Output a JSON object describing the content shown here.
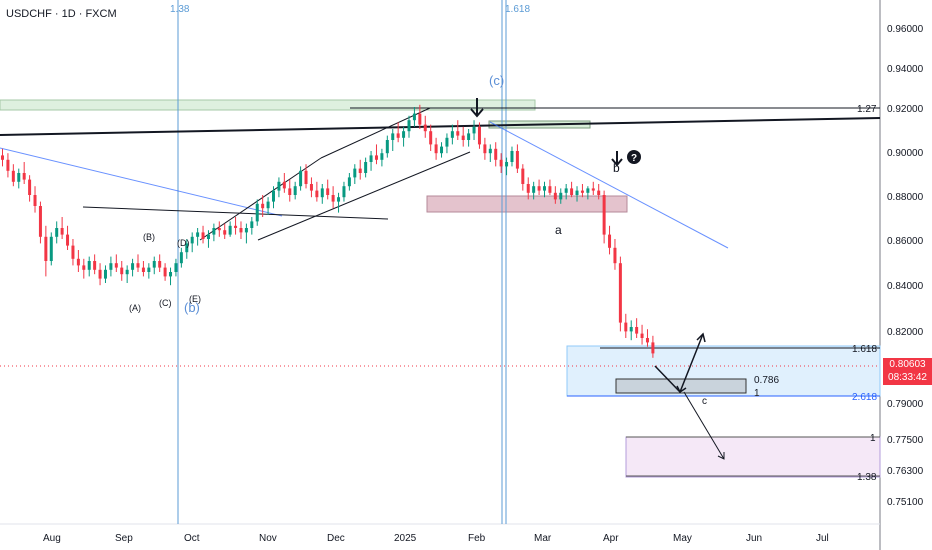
{
  "header": {
    "symbol_line": "USDCHF · 1D · FXCM"
  },
  "price_tag": {
    "price": "0.80603",
    "countdown": "08:33:42"
  },
  "colors": {
    "up": "#089981",
    "down": "#f23645",
    "blue": "#2962ff",
    "fib": "#5b9bd5"
  },
  "chart_data": {
    "type": "candlestick",
    "title": "USDCHF · 1D · FXCM",
    "x_labels": [
      "Aug",
      "Sep",
      "Oct",
      "Nov",
      "Dec",
      "2025",
      "Feb",
      "Mar",
      "Apr",
      "May",
      "Jun",
      "Jul"
    ],
    "y_ticks": [
      0.96,
      0.94,
      0.92,
      0.9,
      0.88,
      0.86,
      0.84,
      0.82,
      0.79,
      0.775,
      0.763,
      0.751
    ],
    "y_tick_labels": [
      "0.96000",
      "0.94000",
      "0.92000",
      "0.90000",
      "0.88000",
      "0.86000",
      "0.84000",
      "0.82000",
      "0.79000",
      "0.77500",
      "0.76300",
      "0.75100"
    ],
    "last_price": 0.80603,
    "series": [
      {
        "values": [
          [
            0.898,
            0.901,
            0.893,
            0.896
          ],
          [
            0.896,
            0.899,
            0.888,
            0.891
          ],
          [
            0.891,
            0.894,
            0.884,
            0.886
          ],
          [
            0.886,
            0.892,
            0.883,
            0.89
          ],
          [
            0.89,
            0.895,
            0.885,
            0.887
          ],
          [
            0.887,
            0.889,
            0.877,
            0.88
          ],
          [
            0.88,
            0.884,
            0.872,
            0.875
          ],
          [
            0.875,
            0.877,
            0.858,
            0.861
          ],
          [
            0.861,
            0.866,
            0.843,
            0.85
          ],
          [
            0.85,
            0.863,
            0.848,
            0.861
          ],
          [
            0.861,
            0.868,
            0.858,
            0.865
          ],
          [
            0.865,
            0.87,
            0.86,
            0.862
          ],
          [
            0.862,
            0.866,
            0.855,
            0.857
          ],
          [
            0.857,
            0.86,
            0.848,
            0.851
          ],
          [
            0.851,
            0.855,
            0.845,
            0.848
          ],
          [
            0.848,
            0.851,
            0.842,
            0.846
          ],
          [
            0.846,
            0.852,
            0.843,
            0.85
          ],
          [
            0.85,
            0.853,
            0.844,
            0.846
          ],
          [
            0.846,
            0.849,
            0.839,
            0.842
          ],
          [
            0.842,
            0.848,
            0.84,
            0.846
          ],
          [
            0.846,
            0.852,
            0.843,
            0.849
          ],
          [
            0.849,
            0.853,
            0.845,
            0.847
          ],
          [
            0.847,
            0.85,
            0.841,
            0.844
          ],
          [
            0.844,
            0.848,
            0.84,
            0.846
          ],
          [
            0.846,
            0.851,
            0.843,
            0.849
          ],
          [
            0.849,
            0.853,
            0.845,
            0.847
          ],
          [
            0.847,
            0.85,
            0.843,
            0.845
          ],
          [
            0.845,
            0.849,
            0.842,
            0.847
          ],
          [
            0.847,
            0.852,
            0.844,
            0.85
          ],
          [
            0.85,
            0.853,
            0.845,
            0.847
          ],
          [
            0.847,
            0.849,
            0.841,
            0.843
          ],
          [
            0.843,
            0.847,
            0.839,
            0.845
          ],
          [
            0.845,
            0.851,
            0.843,
            0.849
          ],
          [
            0.849,
            0.856,
            0.847,
            0.854
          ],
          [
            0.854,
            0.86,
            0.851,
            0.858
          ],
          [
            0.858,
            0.863,
            0.854,
            0.861
          ],
          [
            0.861,
            0.865,
            0.857,
            0.863
          ],
          [
            0.863,
            0.866,
            0.858,
            0.86
          ],
          [
            0.86,
            0.864,
            0.856,
            0.862
          ],
          [
            0.862,
            0.867,
            0.859,
            0.865
          ],
          [
            0.865,
            0.868,
            0.861,
            0.864
          ],
          [
            0.864,
            0.867,
            0.86,
            0.862
          ],
          [
            0.862,
            0.868,
            0.861,
            0.866
          ],
          [
            0.866,
            0.87,
            0.862,
            0.865
          ],
          [
            0.865,
            0.868,
            0.86,
            0.863
          ],
          [
            0.863,
            0.867,
            0.858,
            0.865
          ],
          [
            0.865,
            0.87,
            0.862,
            0.868
          ],
          [
            0.868,
            0.878,
            0.866,
            0.876
          ],
          [
            0.876,
            0.88,
            0.87,
            0.874
          ],
          [
            0.874,
            0.879,
            0.871,
            0.877
          ],
          [
            0.877,
            0.884,
            0.874,
            0.882
          ],
          [
            0.882,
            0.888,
            0.879,
            0.886
          ],
          [
            0.886,
            0.89,
            0.881,
            0.883
          ],
          [
            0.883,
            0.887,
            0.877,
            0.88
          ],
          [
            0.88,
            0.886,
            0.878,
            0.884
          ],
          [
            0.884,
            0.893,
            0.882,
            0.891
          ],
          [
            0.891,
            0.894,
            0.883,
            0.885
          ],
          [
            0.885,
            0.888,
            0.879,
            0.882
          ],
          [
            0.882,
            0.886,
            0.877,
            0.879
          ],
          [
            0.879,
            0.885,
            0.876,
            0.883
          ],
          [
            0.883,
            0.887,
            0.878,
            0.88
          ],
          [
            0.88,
            0.884,
            0.874,
            0.877
          ],
          [
            0.877,
            0.881,
            0.872,
            0.879
          ],
          [
            0.879,
            0.886,
            0.877,
            0.884
          ],
          [
            0.884,
            0.89,
            0.882,
            0.888
          ],
          [
            0.888,
            0.894,
            0.885,
            0.892
          ],
          [
            0.892,
            0.896,
            0.887,
            0.89
          ],
          [
            0.89,
            0.897,
            0.888,
            0.895
          ],
          [
            0.895,
            0.9,
            0.891,
            0.898
          ],
          [
            0.898,
            0.903,
            0.894,
            0.896
          ],
          [
            0.896,
            0.901,
            0.893,
            0.899
          ],
          [
            0.899,
            0.907,
            0.897,
            0.905
          ],
          [
            0.905,
            0.91,
            0.9,
            0.908
          ],
          [
            0.908,
            0.913,
            0.904,
            0.906
          ],
          [
            0.906,
            0.911,
            0.902,
            0.909
          ],
          [
            0.909,
            0.916,
            0.906,
            0.914
          ],
          [
            0.914,
            0.92,
            0.911,
            0.917
          ],
          [
            0.917,
            0.921,
            0.91,
            0.912
          ],
          [
            0.912,
            0.916,
            0.906,
            0.909
          ],
          [
            0.909,
            0.912,
            0.9,
            0.903
          ],
          [
            0.903,
            0.906,
            0.896,
            0.899
          ],
          [
            0.899,
            0.904,
            0.897,
            0.902
          ],
          [
            0.902,
            0.908,
            0.899,
            0.906
          ],
          [
            0.906,
            0.912,
            0.903,
            0.909
          ],
          [
            0.909,
            0.914,
            0.905,
            0.907
          ],
          [
            0.907,
            0.911,
            0.902,
            0.905
          ],
          [
            0.905,
            0.91,
            0.902,
            0.908
          ],
          [
            0.908,
            0.914,
            0.905,
            0.911
          ],
          [
            0.911,
            0.913,
            0.901,
            0.903
          ],
          [
            0.903,
            0.906,
            0.896,
            0.899
          ],
          [
            0.899,
            0.903,
            0.895,
            0.901
          ],
          [
            0.901,
            0.904,
            0.893,
            0.896
          ],
          [
            0.896,
            0.899,
            0.89,
            0.893
          ],
          [
            0.893,
            0.897,
            0.889,
            0.895
          ],
          [
            0.895,
            0.902,
            0.893,
            0.9
          ],
          [
            0.9,
            0.903,
            0.89,
            0.892
          ],
          [
            0.892,
            0.894,
            0.882,
            0.885
          ],
          [
            0.885,
            0.888,
            0.878,
            0.881
          ],
          [
            0.881,
            0.886,
            0.878,
            0.884
          ],
          [
            0.884,
            0.887,
            0.88,
            0.882
          ],
          [
            0.882,
            0.886,
            0.879,
            0.884
          ],
          [
            0.884,
            0.887,
            0.88,
            0.881
          ],
          [
            0.881,
            0.884,
            0.876,
            0.878
          ],
          [
            0.878,
            0.883,
            0.876,
            0.881
          ],
          [
            0.881,
            0.885,
            0.878,
            0.883
          ],
          [
            0.883,
            0.886,
            0.879,
            0.88
          ],
          [
            0.88,
            0.884,
            0.877,
            0.882
          ],
          [
            0.882,
            0.885,
            0.879,
            0.881
          ],
          [
            0.881,
            0.884,
            0.878,
            0.883
          ],
          [
            0.883,
            0.886,
            0.88,
            0.882
          ],
          [
            0.882,
            0.885,
            0.878,
            0.88
          ],
          [
            0.88,
            0.882,
            0.858,
            0.862
          ],
          [
            0.862,
            0.866,
            0.853,
            0.856
          ],
          [
            0.856,
            0.86,
            0.846,
            0.849
          ],
          [
            0.849,
            0.852,
            0.818,
            0.822
          ],
          [
            0.822,
            0.826,
            0.815,
            0.818
          ],
          [
            0.818,
            0.823,
            0.814,
            0.82
          ],
          [
            0.82,
            0.824,
            0.815,
            0.817
          ],
          [
            0.817,
            0.821,
            0.812,
            0.815
          ],
          [
            0.815,
            0.819,
            0.811,
            0.813
          ],
          [
            0.813,
            0.816,
            0.806,
            0.808
          ]
        ]
      }
    ],
    "horizontal_levels": [
      {
        "label": "1.27",
        "value": 0.9205
      },
      {
        "label": "1.618",
        "value": 0.8129
      },
      {
        "label": "0.786",
        "value": 0.8005
      },
      {
        "label": "1",
        "value": 0.7975
      },
      {
        "label": "2.618",
        "value": 0.7925
      },
      {
        "label": "1",
        "value": 0.7765
      },
      {
        "label": "1.38",
        "value": 0.7625
      }
    ],
    "vertical_labels": [
      "1.38",
      "1.618"
    ],
    "wave_labels": [
      "(c)",
      "(b)",
      "(A)",
      "(B)",
      "(C)",
      "(D)",
      "(E)",
      "a",
      "b",
      "c"
    ]
  }
}
